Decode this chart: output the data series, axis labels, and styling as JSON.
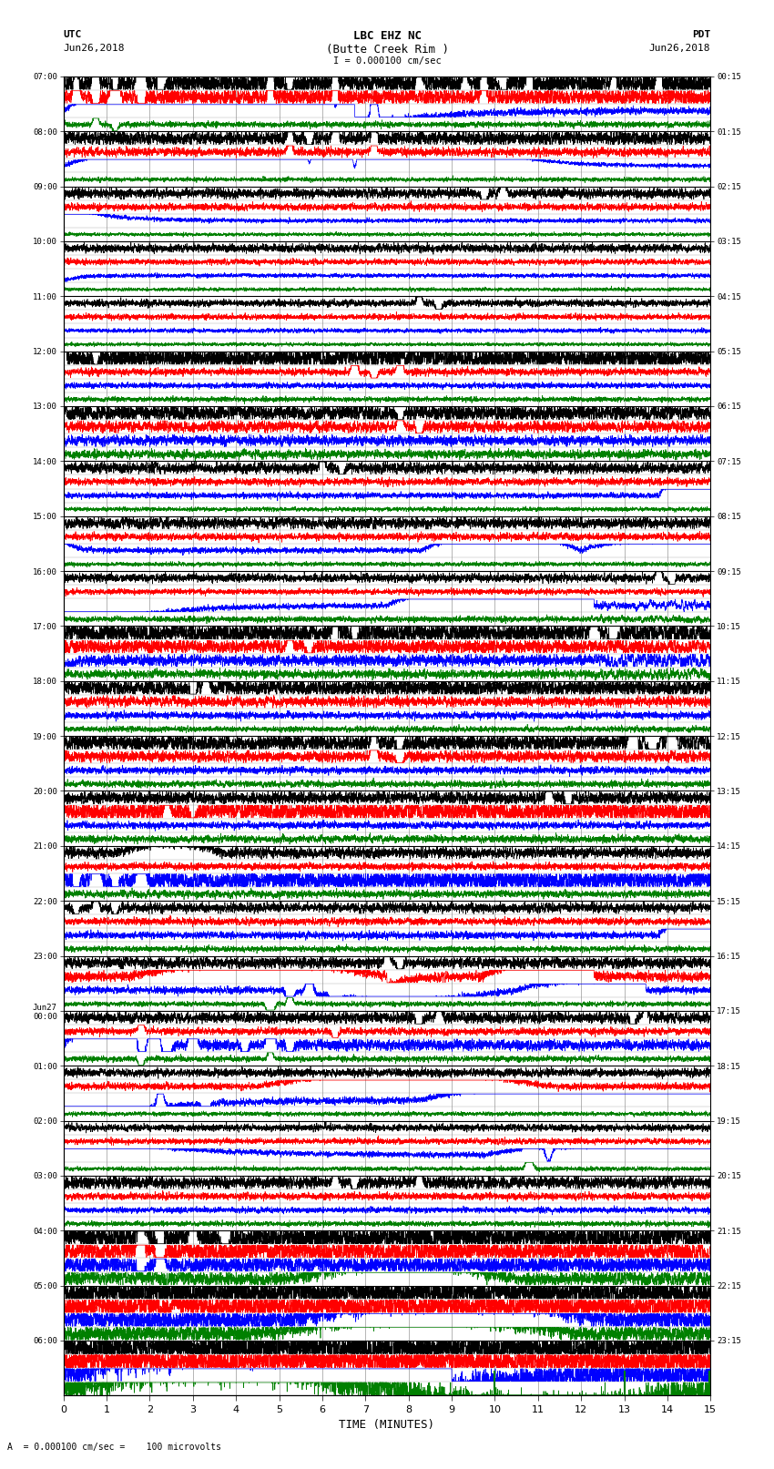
{
  "title_line1": "LBC EHZ NC",
  "title_line2": "(Butte Creek Rim )",
  "scale_label": "I = 0.000100 cm/sec",
  "utc_label": "UTC",
  "utc_date": "Jun26,2018",
  "pdt_label": "PDT",
  "pdt_date": "Jun26,2018",
  "bottom_label": "A  = 0.000100 cm/sec =    100 microvolts",
  "xlabel": "TIME (MINUTES)",
  "left_times": [
    "07:00",
    "08:00",
    "09:00",
    "10:00",
    "11:00",
    "12:00",
    "13:00",
    "14:00",
    "15:00",
    "16:00",
    "17:00",
    "18:00",
    "19:00",
    "20:00",
    "21:00",
    "22:00",
    "23:00",
    "Jun27\n00:00",
    "01:00",
    "02:00",
    "03:00",
    "04:00",
    "05:00",
    "06:00"
  ],
  "right_times": [
    "00:15",
    "01:15",
    "02:15",
    "03:15",
    "04:15",
    "05:15",
    "06:15",
    "07:15",
    "08:15",
    "09:15",
    "10:15",
    "11:15",
    "12:15",
    "13:15",
    "14:15",
    "15:15",
    "16:15",
    "17:15",
    "18:15",
    "19:15",
    "20:15",
    "21:15",
    "22:15",
    "23:15"
  ],
  "colors": [
    "black",
    "red",
    "blue",
    "green"
  ],
  "background": "white",
  "grid_color": "#999999",
  "n_rows": 24,
  "minutes": 15,
  "n_plot_pts": 9000,
  "amp_scale": 0.38,
  "trace_sep": 1.0
}
